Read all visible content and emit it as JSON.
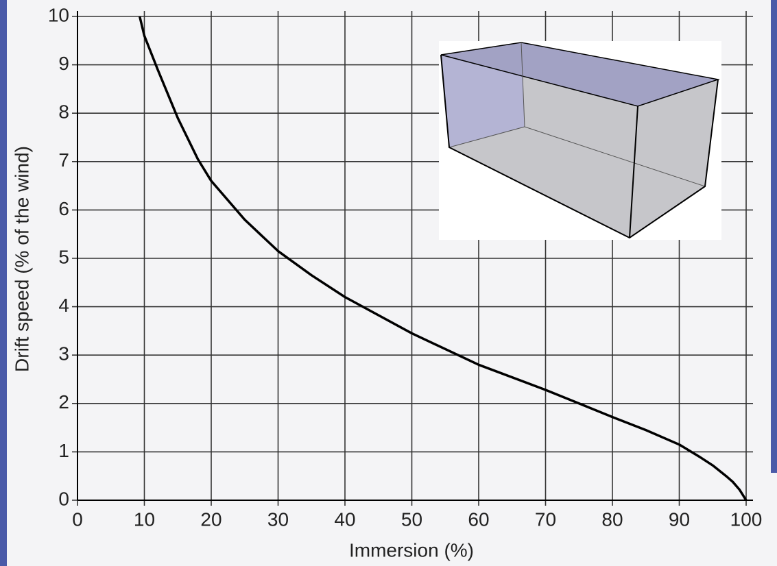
{
  "chart_data": {
    "type": "line",
    "xlabel": "Immersion (%)",
    "ylabel": "Drift speed (% of the wind)",
    "x": [
      9.3,
      10,
      12,
      15,
      18,
      20,
      25,
      30,
      35,
      40,
      50,
      60,
      70,
      75,
      80,
      85,
      90,
      93,
      95,
      97,
      98,
      99,
      100
    ],
    "series": [
      {
        "color": "#000000",
        "values": [
          10,
          9.6,
          8.9,
          7.9,
          7.05,
          6.6,
          5.8,
          5.15,
          4.65,
          4.2,
          3.45,
          2.8,
          2.28,
          2.0,
          1.72,
          1.45,
          1.15,
          0.9,
          0.72,
          0.5,
          0.38,
          0.22,
          0
        ]
      }
    ],
    "xlim": [
      0,
      100
    ],
    "ylim": [
      0,
      10
    ],
    "xticks": [
      0,
      10,
      20,
      30,
      40,
      50,
      60,
      70,
      80,
      90,
      100
    ],
    "yticks": [
      0,
      1,
      2,
      3,
      4,
      5,
      6,
      7,
      8,
      9,
      10
    ],
    "grid": true
  }
}
